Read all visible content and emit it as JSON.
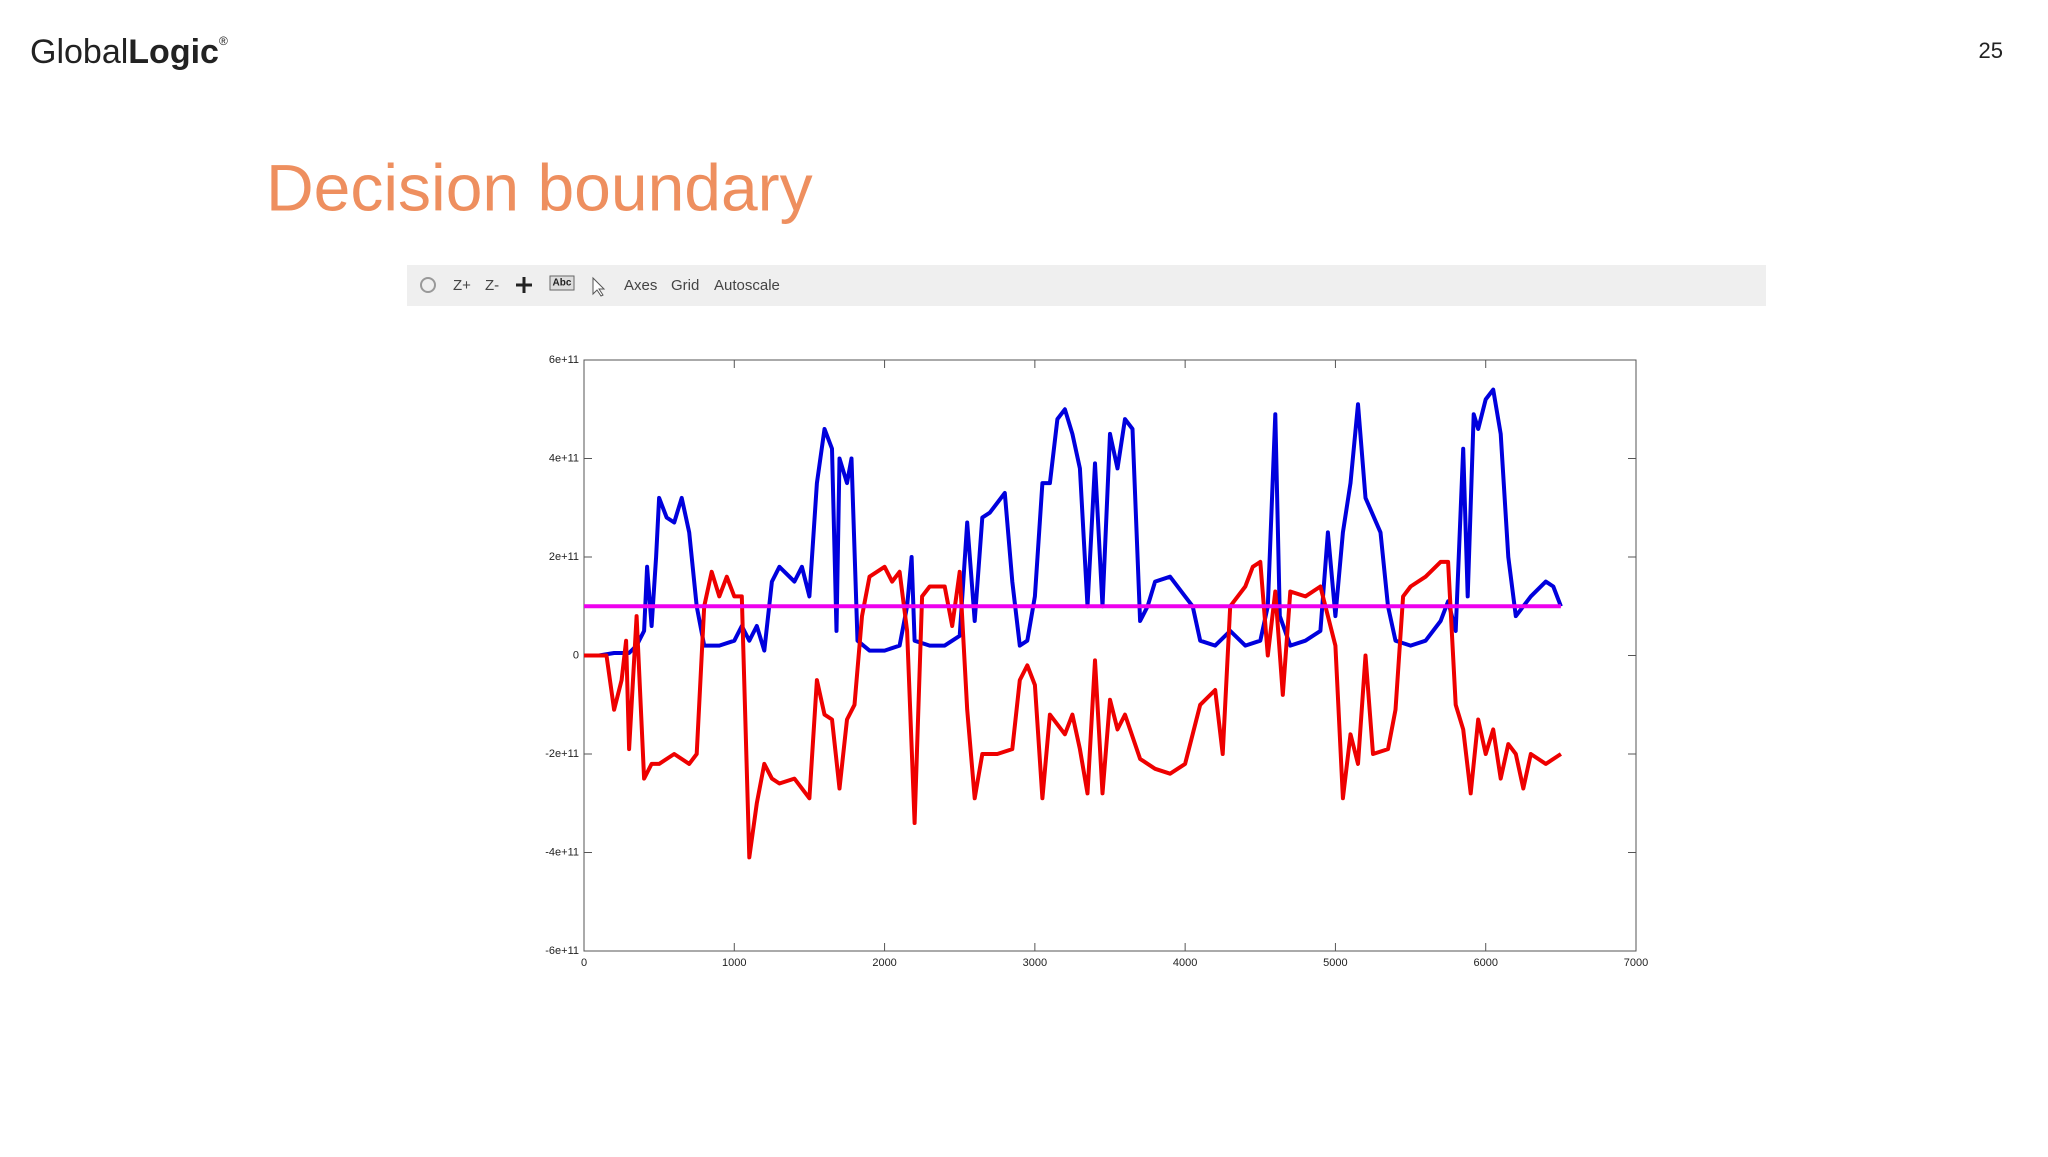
{
  "header": {
    "logo": [
      "Global",
      "Logic",
      "®"
    ],
    "page_number": "25",
    "title": "Decision boundary"
  },
  "toolbar": {
    "items": [
      "Z+",
      "Z-",
      "Abc",
      "Axes",
      "Grid",
      "Autoscale"
    ]
  },
  "chart_data": {
    "type": "line",
    "xlim": [
      0,
      7000
    ],
    "xticks": [
      0,
      1000,
      2000,
      3000,
      4000,
      5000,
      6000,
      7000
    ],
    "ylim": [
      -600000000000.0,
      600000000000.0
    ],
    "yticks": [
      {
        "value": -600000000000.0,
        "label": "-6e+11"
      },
      {
        "value": -400000000000.0,
        "label": "-4e+11"
      },
      {
        "value": -200000000000.0,
        "label": "-2e+11"
      },
      0,
      {
        "value": 200000000000.0,
        "label": "2e+11"
      },
      {
        "value": 400000000000.0,
        "label": "4e+11"
      },
      {
        "value": 600000000000.0,
        "label": "6e+11"
      }
    ],
    "grid": false,
    "series": [
      {
        "color": "#0000dd",
        "x": [
          0,
          100,
          200,
          300,
          350,
          400,
          420,
          450,
          480,
          500,
          550,
          600,
          650,
          700,
          750,
          800,
          900,
          1000,
          1050,
          1100,
          1150,
          1200,
          1250,
          1300,
          1400,
          1450,
          1500,
          1550,
          1600,
          1650,
          1680,
          1700,
          1750,
          1780,
          1820,
          1900,
          2000,
          2100,
          2150,
          2180,
          2200,
          2300,
          2400,
          2500,
          2550,
          2600,
          2650,
          2700,
          2800,
          2850,
          2900,
          2950,
          3000,
          3050,
          3100,
          3150,
          3200,
          3250,
          3300,
          3350,
          3400,
          3450,
          3500,
          3550,
          3600,
          3650,
          3700,
          3750,
          3800,
          3900,
          4000,
          4050,
          4100,
          4200,
          4300,
          4400,
          4500,
          4550,
          4600,
          4630,
          4700,
          4800,
          4900,
          4950,
          5000,
          5050,
          5100,
          5150,
          5200,
          5300,
          5350,
          5400,
          5500,
          5600,
          5700,
          5750,
          5800,
          5850,
          5880,
          5920,
          5950,
          6000,
          6050,
          6100,
          6150,
          6200,
          6250,
          6300,
          6400,
          6450,
          6500
        ],
        "values": [
          0,
          0,
          5000000000.0,
          5000000000.0,
          20000000000.0,
          50000000000.0,
          180000000000.0,
          60000000000.0,
          200000000000.0,
          320000000000.0,
          280000000000.0,
          270000000000.0,
          320000000000.0,
          250000000000.0,
          100000000000.0,
          20000000000.0,
          20000000000.0,
          30000000000.0,
          60000000000.0,
          30000000000.0,
          60000000000.0,
          10000000000.0,
          150000000000.0,
          180000000000.0,
          150000000000.0,
          180000000000.0,
          120000000000.0,
          350000000000.0,
          460000000000.0,
          420000000000.0,
          50000000000.0,
          400000000000.0,
          350000000000.0,
          400000000000.0,
          30000000000.0,
          10000000000.0,
          10000000000.0,
          20000000000.0,
          100000000000.0,
          200000000000.0,
          30000000000.0,
          20000000000.0,
          20000000000.0,
          40000000000.0,
          270000000000.0,
          70000000000.0,
          280000000000.0,
          290000000000.0,
          330000000000.0,
          150000000000.0,
          20000000000.0,
          30000000000.0,
          120000000000.0,
          350000000000.0,
          350000000000.0,
          480000000000.0,
          500000000000.0,
          450000000000.0,
          380000000000.0,
          100000000000.0,
          390000000000.0,
          100000000000.0,
          450000000000.0,
          380000000000.0,
          480000000000.0,
          460000000000.0,
          70000000000.0,
          100000000000.0,
          150000000000.0,
          160000000000.0,
          120000000000.0,
          100000000000.0,
          30000000000.0,
          20000000000.0,
          50000000000.0,
          20000000000.0,
          30000000000.0,
          100000000000.0,
          490000000000.0,
          80000000000.0,
          20000000000.0,
          30000000000.0,
          50000000000.0,
          250000000000.0,
          80000000000.0,
          250000000000.0,
          350000000000.0,
          510000000000.0,
          320000000000.0,
          250000000000.0,
          100000000000.0,
          30000000000.0,
          20000000000.0,
          30000000000.0,
          70000000000.0,
          110000000000.0,
          50000000000.0,
          420000000000.0,
          120000000000.0,
          490000000000.0,
          460000000000.0,
          520000000000.0,
          540000000000.0,
          450000000000.0,
          200000000000.0,
          80000000000.0,
          100000000000.0,
          120000000000.0,
          150000000000.0,
          140000000000.0,
          100000000000.0
        ]
      },
      {
        "color": "#ee0000",
        "x": [
          0,
          100,
          150,
          200,
          250,
          280,
          300,
          350,
          400,
          450,
          500,
          600,
          700,
          750,
          800,
          850,
          900,
          950,
          1000,
          1050,
          1100,
          1150,
          1200,
          1250,
          1300,
          1400,
          1500,
          1550,
          1600,
          1650,
          1700,
          1750,
          1800,
          1850,
          1900,
          2000,
          2050,
          2100,
          2150,
          2200,
          2250,
          2300,
          2400,
          2450,
          2500,
          2550,
          2600,
          2650,
          2750,
          2850,
          2900,
          2950,
          3000,
          3050,
          3100,
          3200,
          3250,
          3300,
          3350,
          3400,
          3450,
          3500,
          3550,
          3600,
          3700,
          3800,
          3900,
          4000,
          4100,
          4200,
          4250,
          4300,
          4400,
          4450,
          4500,
          4550,
          4600,
          4650,
          4700,
          4800,
          4900,
          5000,
          5050,
          5100,
          5150,
          5200,
          5250,
          5350,
          5400,
          5450,
          5500,
          5600,
          5700,
          5750,
          5800,
          5850,
          5900,
          5950,
          6000,
          6050,
          6100,
          6150,
          6200,
          6250,
          6300,
          6400,
          6500
        ],
        "values": [
          0,
          0,
          0,
          -110000000000.0,
          -50000000000.0,
          30000000000.0,
          -190000000000.0,
          80000000000.0,
          -250000000000.0,
          -220000000000.0,
          -220000000000.0,
          -200000000000.0,
          -220000000000.0,
          -200000000000.0,
          100000000000.0,
          170000000000.0,
          120000000000.0,
          160000000000.0,
          120000000000.0,
          120000000000.0,
          -410000000000.0,
          -300000000000.0,
          -220000000000.0,
          -250000000000.0,
          -260000000000.0,
          -250000000000.0,
          -290000000000.0,
          -50000000000.0,
          -120000000000.0,
          -130000000000.0,
          -270000000000.0,
          -130000000000.0,
          -100000000000.0,
          80000000000.0,
          160000000000.0,
          180000000000.0,
          150000000000.0,
          170000000000.0,
          50000000000.0,
          -340000000000.0,
          120000000000.0,
          140000000000.0,
          140000000000.0,
          60000000000.0,
          170000000000.0,
          -110000000000.0,
          -290000000000.0,
          -200000000000.0,
          -200000000000.0,
          -190000000000.0,
          -50000000000.0,
          -20000000000.0,
          -60000000000.0,
          -290000000000.0,
          -120000000000.0,
          -160000000000.0,
          -120000000000.0,
          -190000000000.0,
          -280000000000.0,
          -10000000000.0,
          -280000000000.0,
          -90000000000.0,
          -150000000000.0,
          -120000000000.0,
          -210000000000.0,
          -230000000000.0,
          -240000000000.0,
          -220000000000.0,
          -100000000000.0,
          -70000000000.0,
          -200000000000.0,
          100000000000.0,
          140000000000.0,
          180000000000.0,
          190000000000.0,
          0,
          130000000000.0,
          -80000000000.0,
          130000000000.0,
          120000000000.0,
          140000000000.0,
          20000000000.0,
          -290000000000.0,
          -160000000000.0,
          -220000000000.0,
          0,
          -200000000000.0,
          -190000000000.0,
          -110000000000.0,
          120000000000.0,
          140000000000.0,
          160000000000.0,
          190000000000.0,
          190000000000.0,
          -100000000000.0,
          -150000000000.0,
          -280000000000.0,
          -130000000000.0,
          -200000000000.0,
          -150000000000.0,
          -250000000000.0,
          -180000000000.0,
          -200000000000.0,
          -270000000000.0,
          -200000000000.0,
          -220000000000.0,
          -200000000000.0
        ]
      },
      {
        "color": "#ee00ee",
        "x": [
          0,
          6500
        ],
        "values": [
          100000000000.0,
          100000000000.0
        ]
      }
    ]
  }
}
